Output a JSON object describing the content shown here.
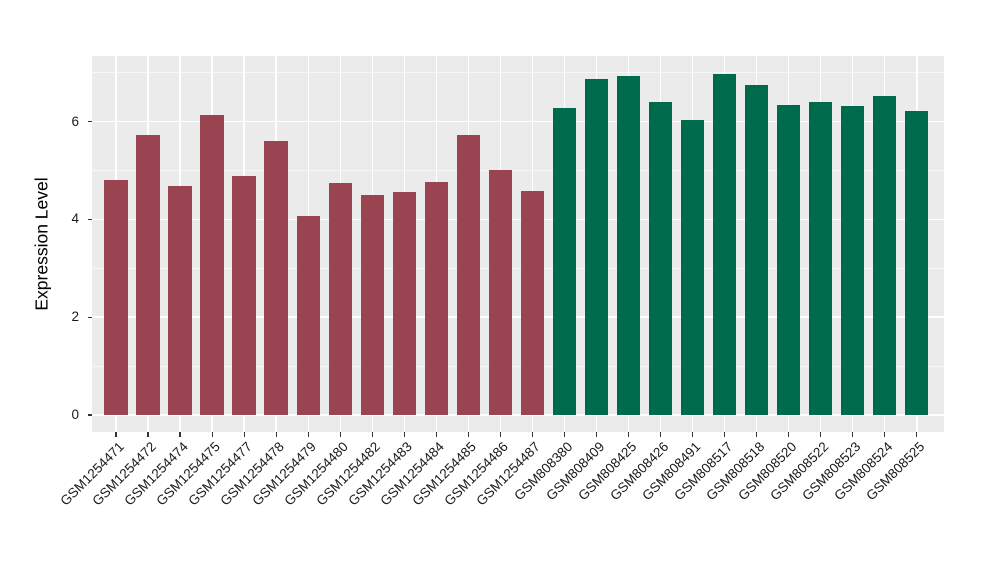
{
  "chart_data": {
    "type": "bar",
    "title": "",
    "xlabel": "",
    "ylabel": "Expression Level",
    "categories": [
      "GSM1254471",
      "GSM1254472",
      "GSM1254474",
      "GSM1254475",
      "GSM1254477",
      "GSM1254478",
      "GSM1254479",
      "GSM1254480",
      "GSM1254482",
      "GSM1254483",
      "GSM1254484",
      "GSM1254485",
      "GSM1254486",
      "GSM1254487",
      "GSM808380",
      "GSM808409",
      "GSM808425",
      "GSM808426",
      "GSM808491",
      "GSM808517",
      "GSM808518",
      "GSM808520",
      "GSM808522",
      "GSM808523",
      "GSM808524",
      "GSM808525"
    ],
    "values": [
      4.81,
      5.72,
      4.68,
      6.14,
      4.89,
      5.61,
      4.07,
      4.75,
      4.49,
      4.57,
      4.77,
      5.73,
      5.01,
      4.58,
      6.28,
      6.87,
      6.94,
      6.41,
      6.03,
      6.98,
      6.74,
      6.34,
      6.4,
      6.32,
      6.53,
      6.21
    ],
    "bar_colors": [
      "#9A4451",
      "#9A4451",
      "#9A4451",
      "#9A4451",
      "#9A4451",
      "#9A4451",
      "#9A4451",
      "#9A4451",
      "#9A4451",
      "#9A4451",
      "#9A4451",
      "#9A4451",
      "#9A4451",
      "#9A4451",
      "#006B4C",
      "#006B4C",
      "#006B4C",
      "#006B4C",
      "#006B4C",
      "#006B4C",
      "#006B4C",
      "#006B4C",
      "#006B4C",
      "#006B4C",
      "#006B4C",
      "#006B4C"
    ],
    "yticks": [
      0,
      2,
      4,
      6
    ],
    "ytick_labels": [
      "0",
      "2",
      "4",
      "6"
    ],
    "minor_gridlines": [
      1,
      3,
      5,
      7
    ],
    "ylim": [
      0,
      7.35
    ],
    "grid": "on",
    "legend_position": "none",
    "panel_background": "#EBEBEB",
    "grid_color": "#FFFFFF",
    "tick_color": "#333333",
    "axis_text_color": "#1A1A1A"
  }
}
